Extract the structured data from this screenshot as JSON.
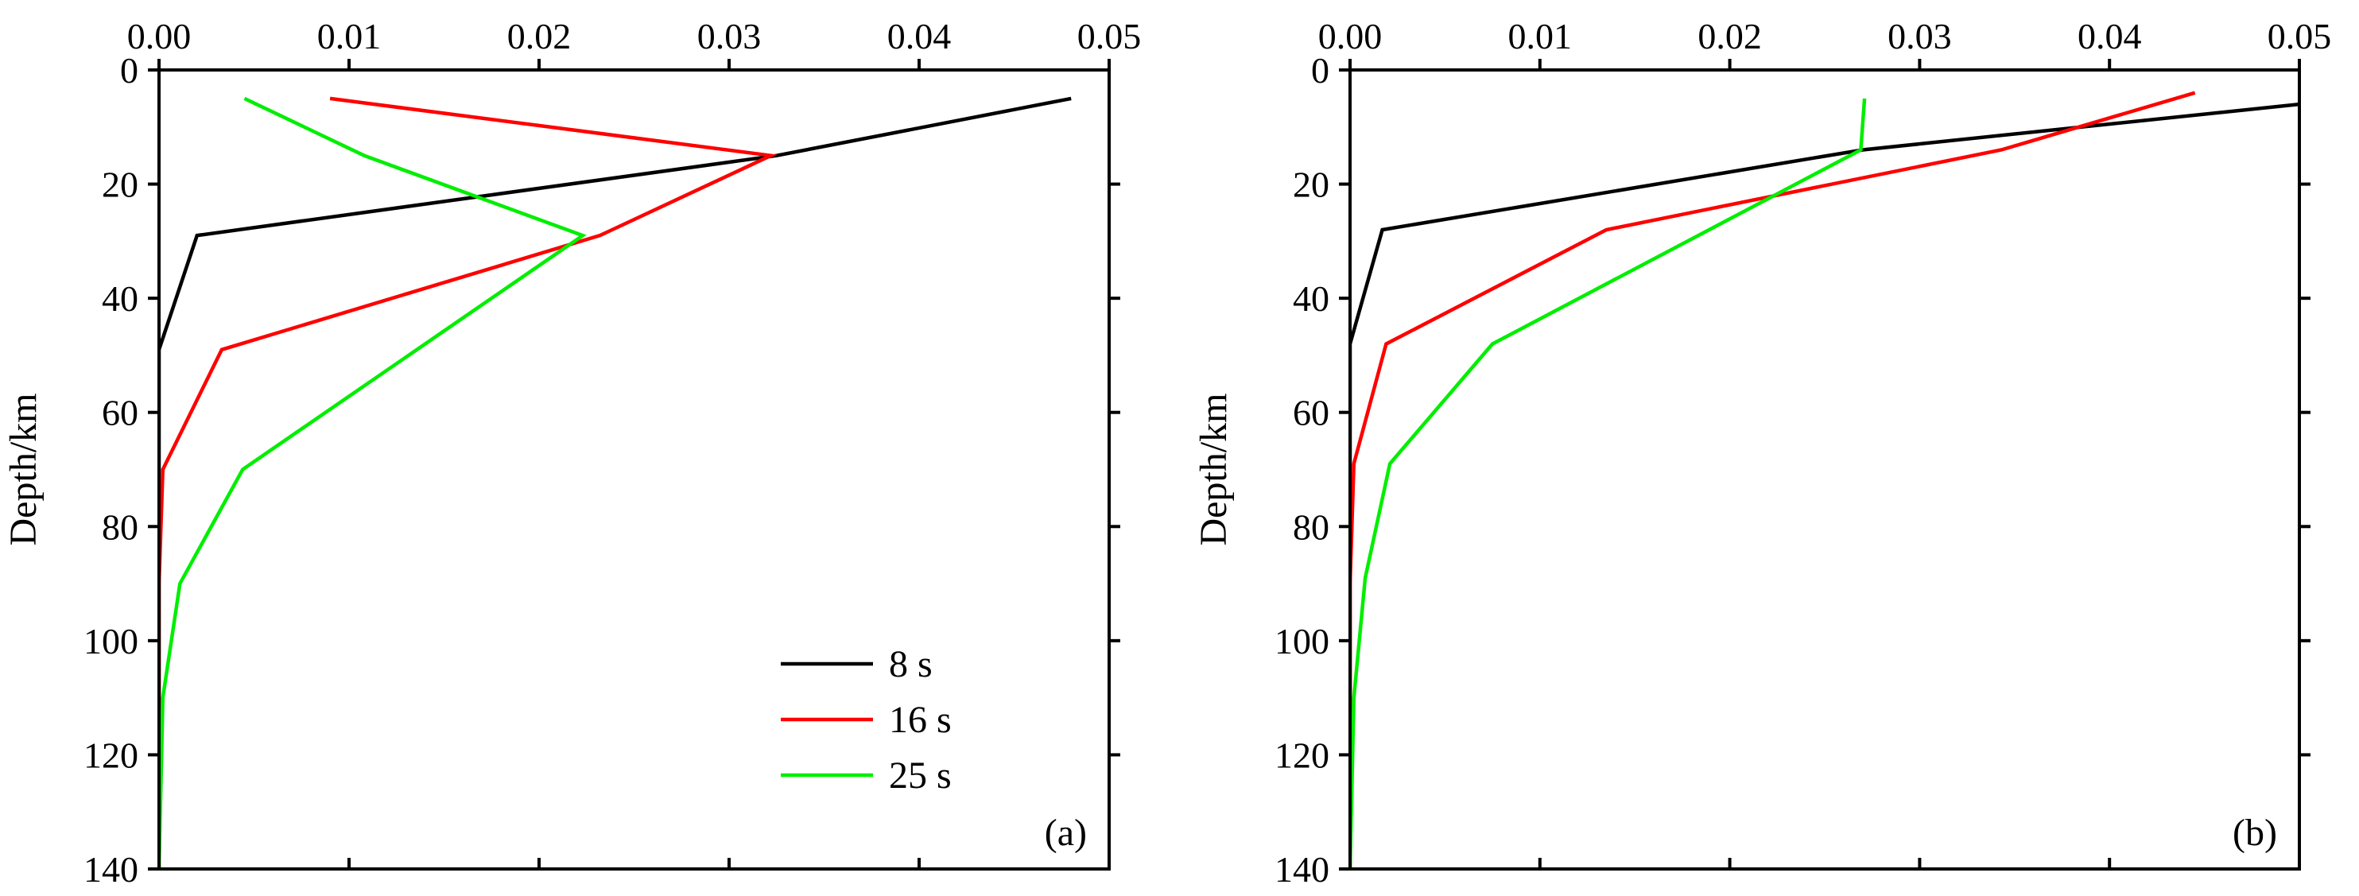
{
  "chart_data": [
    {
      "type": "line",
      "panel_label": "(a)",
      "ylabel": "Depth/km",
      "xlabel": "",
      "xlim": [
        0,
        0.05
      ],
      "ylim": [
        0,
        140
      ],
      "y_inverted": true,
      "x_axis_position": "top",
      "x_ticks": [
        "0.00",
        "0.01",
        "0.02",
        "0.03",
        "0.04",
        "0.05"
      ],
      "y_ticks": [
        "0",
        "20",
        "40",
        "60",
        "80",
        "100",
        "120",
        "140"
      ],
      "legend": {
        "placement": "bottom-right"
      },
      "series": [
        {
          "name": "8 s",
          "color": "#000000",
          "points": [
            [
              0.048,
              5
            ],
            [
              0.0325,
              15
            ],
            [
              0.002,
              29
            ],
            [
              0.0,
              49
            ],
            [
              0.0,
              70
            ],
            [
              0.0,
              90
            ],
            [
              0.0,
              110
            ],
            [
              0.0,
              140
            ]
          ]
        },
        {
          "name": "16 s",
          "color": "#ff0000",
          "points": [
            [
              0.009,
              5
            ],
            [
              0.0322,
              15
            ],
            [
              0.0232,
              29
            ],
            [
              0.0033,
              49
            ],
            [
              0.0002,
              70
            ],
            [
              0.0,
              90
            ],
            [
              0.0,
              110
            ],
            [
              0.0,
              140
            ]
          ]
        },
        {
          "name": "25 s",
          "color": "#00ee00",
          "points": [
            [
              0.0045,
              5
            ],
            [
              0.0108,
              15
            ],
            [
              0.0223,
              29
            ],
            [
              0.0175,
              40
            ],
            [
              0.0044,
              70
            ],
            [
              0.0011,
              90
            ],
            [
              0.0002,
              110
            ],
            [
              0.0,
              140
            ]
          ]
        }
      ]
    },
    {
      "type": "line",
      "panel_label": "(b)",
      "ylabel": "Depth/km",
      "xlabel": "",
      "xlim": [
        0,
        0.05
      ],
      "ylim": [
        0,
        140
      ],
      "y_inverted": true,
      "x_axis_position": "top",
      "x_ticks": [
        "0.00",
        "0.01",
        "0.02",
        "0.03",
        "0.04",
        "0.05"
      ],
      "y_ticks": [
        "0",
        "20",
        "40",
        "60",
        "80",
        "100",
        "120",
        "140"
      ],
      "series": [
        {
          "name": "8 s",
          "color": "#000000",
          "points": [
            [
              0.05,
              6
            ],
            [
              0.027,
              14
            ],
            [
              0.0017,
              28
            ],
            [
              0.0,
              48
            ],
            [
              0.0,
              70
            ],
            [
              0.0,
              90
            ],
            [
              0.0,
              140
            ]
          ]
        },
        {
          "name": "16 s",
          "color": "#ff0000",
          "points": [
            [
              0.0445,
              4
            ],
            [
              0.0343,
              14
            ],
            [
              0.0135,
              28
            ],
            [
              0.0019,
              48
            ],
            [
              0.0002,
              69
            ],
            [
              0.0,
              90
            ],
            [
              0.0,
              140
            ]
          ]
        },
        {
          "name": "25 s",
          "color": "#00ee00",
          "points": [
            [
              0.0271,
              5
            ],
            [
              0.0269,
              14
            ],
            [
              0.0075,
              48
            ],
            [
              0.0021,
              69
            ],
            [
              0.0008,
              89
            ],
            [
              0.0002,
              110
            ],
            [
              0.0,
              140
            ]
          ]
        }
      ]
    }
  ]
}
